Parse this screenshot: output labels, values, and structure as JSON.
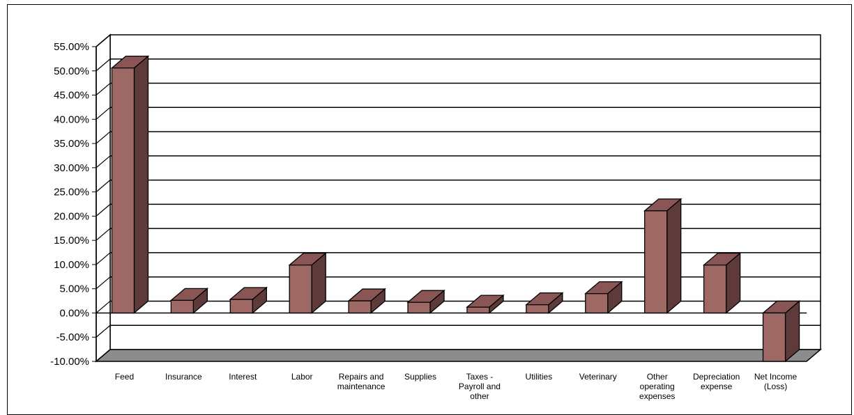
{
  "chart_data": {
    "type": "bar",
    "title": "",
    "xlabel": "",
    "ylabel": "",
    "categories": [
      "Feed",
      "Insurance",
      "Interest",
      "Labor",
      "Repairs and maintenance",
      "Supplies",
      "Taxes - Payroll and other",
      "Utilities",
      "Veterinary",
      "Other operating expenses",
      "Depreciation expense",
      "Net Income (Loss)"
    ],
    "category_lines": [
      [
        "Feed"
      ],
      [
        "Insurance"
      ],
      [
        "Interest"
      ],
      [
        "Labor"
      ],
      [
        "Repairs and",
        "maintenance"
      ],
      [
        "Supplies"
      ],
      [
        "Taxes -",
        "Payroll and",
        "other"
      ],
      [
        "Utilities"
      ],
      [
        "Veterinary"
      ],
      [
        "Other",
        "operating",
        "expenses"
      ],
      [
        "Depreciation",
        "expense"
      ],
      [
        "Net Income",
        "(Loss)"
      ]
    ],
    "values": [
      50.6,
      2.6,
      2.8,
      9.9,
      2.5,
      2.2,
      1.2,
      1.7,
      4.0,
      21.1,
      9.9,
      -10.0
    ],
    "ylim": [
      -10,
      55
    ],
    "yticks": [
      "55.00%",
      "50.00%",
      "45.00%",
      "40.00%",
      "35.00%",
      "30.00%",
      "25.00%",
      "20.00%",
      "15.00%",
      "10.00%",
      "5.00%",
      "0.00%",
      "-5.00%",
      "-10.00%"
    ],
    "ytick_values": [
      55,
      50,
      45,
      40,
      35,
      30,
      25,
      20,
      15,
      10,
      5,
      0,
      -5,
      -10
    ],
    "grid": true,
    "legend": "none",
    "three_d": true,
    "colors": {
      "bar_front": "#9e6865",
      "bar_side": "#5e3b3a",
      "bar_top": "#8a5655",
      "floor": "#8c8c8c",
      "wall": "#ffffff",
      "grid": "#000000"
    }
  }
}
